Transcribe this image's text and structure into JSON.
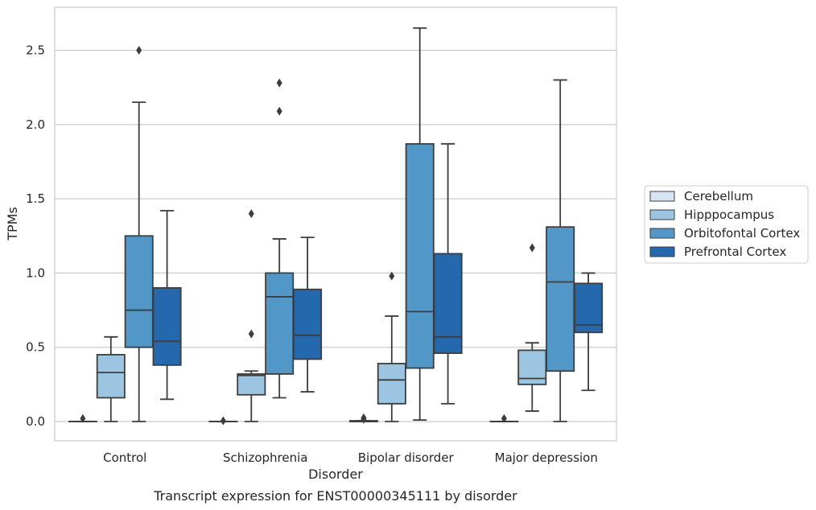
{
  "chart_data": {
    "type": "box",
    "caption": "Transcript expression for ENST00000345111 by disorder",
    "xlabel": "Disorder",
    "ylabel": "TPMs",
    "ylim": [
      -0.13,
      2.79
    ],
    "yticks": [
      "0.0",
      "0.5",
      "1.0",
      "1.5",
      "2.0",
      "2.5"
    ],
    "grid": true,
    "legend_position": "right",
    "categories": [
      "Control",
      "Schizophrenia",
      "Bipolar disorder",
      "Major depression"
    ],
    "series": [
      {
        "name": "Cerebellum",
        "color": "#d6e5f4",
        "boxes": [
          {
            "whislo": 0.0,
            "q1": 0.0,
            "med": 0.0,
            "q3": 0.0,
            "whishi": 0.0,
            "fliers": [
              0.02
            ]
          },
          {
            "whislo": 0.0,
            "q1": 0.0,
            "med": 0.0,
            "q3": 0.0,
            "whishi": 0.0,
            "fliers": [
              0.005
            ]
          },
          {
            "whislo": 0.0,
            "q1": 0.0,
            "med": 0.0,
            "q3": 0.005,
            "whishi": 0.005,
            "fliers": [
              0.015,
              0.025
            ]
          },
          {
            "whislo": 0.0,
            "q1": 0.0,
            "med": 0.0,
            "q3": 0.0,
            "whishi": 0.0,
            "fliers": [
              0.02
            ]
          }
        ]
      },
      {
        "name": "Hipppocampus",
        "color": "#9bc5e0",
        "boxes": [
          {
            "whislo": 0.0,
            "q1": 0.16,
            "med": 0.33,
            "q3": 0.45,
            "whishi": 0.57,
            "fliers": []
          },
          {
            "whislo": 0.0,
            "q1": 0.18,
            "med": 0.31,
            "q3": 0.32,
            "whishi": 0.34,
            "fliers": [
              0.59,
              1.4
            ]
          },
          {
            "whislo": 0.0,
            "q1": 0.12,
            "med": 0.28,
            "q3": 0.39,
            "whishi": 0.71,
            "fliers": [
              0.98
            ]
          },
          {
            "whislo": 0.07,
            "q1": 0.25,
            "med": 0.29,
            "q3": 0.48,
            "whishi": 0.53,
            "fliers": [
              1.17
            ]
          }
        ]
      },
      {
        "name": "Orbitofontal Cortex",
        "color": "#5198c8",
        "boxes": [
          {
            "whislo": 0.0,
            "q1": 0.5,
            "med": 0.75,
            "q3": 1.25,
            "whishi": 2.15,
            "fliers": [
              2.5
            ]
          },
          {
            "whislo": 0.16,
            "q1": 0.32,
            "med": 0.84,
            "q3": 1.0,
            "whishi": 1.23,
            "fliers": [
              2.09,
              2.28
            ]
          },
          {
            "whislo": 0.01,
            "q1": 0.36,
            "med": 0.74,
            "q3": 1.87,
            "whishi": 2.65,
            "fliers": []
          },
          {
            "whislo": 0.0,
            "q1": 0.34,
            "med": 0.94,
            "q3": 1.31,
            "whishi": 2.3,
            "fliers": []
          }
        ]
      },
      {
        "name": "Prefrontal Cortex",
        "color": "#2468ad",
        "boxes": [
          {
            "whislo": 0.15,
            "q1": 0.38,
            "med": 0.54,
            "q3": 0.9,
            "whishi": 1.42,
            "fliers": []
          },
          {
            "whislo": 0.2,
            "q1": 0.42,
            "med": 0.58,
            "q3": 0.89,
            "whishi": 1.24,
            "fliers": []
          },
          {
            "whislo": 0.12,
            "q1": 0.46,
            "med": 0.57,
            "q3": 1.13,
            "whishi": 1.87,
            "fliers": []
          },
          {
            "whislo": 0.21,
            "q1": 0.6,
            "med": 0.65,
            "q3": 0.93,
            "whishi": 1.0,
            "fliers": []
          }
        ]
      }
    ]
  }
}
